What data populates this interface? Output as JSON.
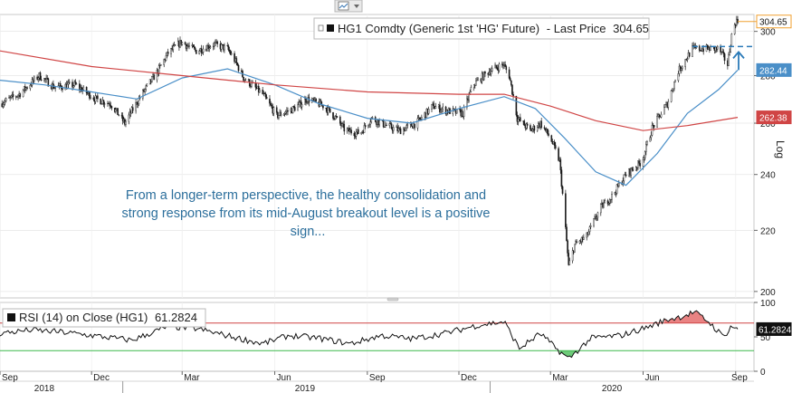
{
  "chart_data": [
    {
      "type": "candlestick",
      "legend": {
        "security": "HG1 Comdty (Generic 1st 'HG' Future)",
        "suffix": "- Last Price",
        "value": "304.65"
      },
      "scale": "log",
      "ylim": [
        198,
        308
      ],
      "yticks": [
        "300",
        "280",
        "260",
        "240",
        "220",
        "200"
      ],
      "ylabel": "Log",
      "date_range": [
        "2018-09-01",
        "2020-09-03"
      ],
      "close_path": [
        [
          "2018-09-01",
          268
        ],
        [
          "2018-09-20",
          272
        ],
        [
          "2018-10-10",
          280
        ],
        [
          "2018-10-25",
          275
        ],
        [
          "2018-11-15",
          276
        ],
        [
          "2018-12-05",
          270
        ],
        [
          "2018-12-20",
          268
        ],
        [
          "2019-01-03",
          260
        ],
        [
          "2019-01-20",
          272
        ],
        [
          "2019-02-05",
          282
        ],
        [
          "2019-02-15",
          290
        ],
        [
          "2019-02-28",
          295
        ],
        [
          "2019-03-15",
          291
        ],
        [
          "2019-04-01",
          294
        ],
        [
          "2019-04-15",
          292
        ],
        [
          "2019-04-22",
          287
        ],
        [
          "2019-05-01",
          279
        ],
        [
          "2019-05-20",
          272
        ],
        [
          "2019-06-03",
          263
        ],
        [
          "2019-06-20",
          266
        ],
        [
          "2019-07-03",
          270
        ],
        [
          "2019-07-20",
          267
        ],
        [
          "2019-08-01",
          262
        ],
        [
          "2019-08-10",
          257
        ],
        [
          "2019-08-25",
          256
        ],
        [
          "2019-09-05",
          262
        ],
        [
          "2019-09-20",
          259
        ],
        [
          "2019-10-03",
          257
        ],
        [
          "2019-10-20",
          260
        ],
        [
          "2019-11-05",
          267
        ],
        [
          "2019-11-20",
          265
        ],
        [
          "2019-12-05",
          264
        ],
        [
          "2019-12-15",
          276
        ],
        [
          "2019-12-31",
          282
        ],
        [
          "2020-01-14",
          285
        ],
        [
          "2020-01-20",
          280
        ],
        [
          "2020-01-28",
          262
        ],
        [
          "2020-02-10",
          257
        ],
        [
          "2020-02-20",
          260
        ],
        [
          "2020-03-01",
          254
        ],
        [
          "2020-03-10",
          245
        ],
        [
          "2020-03-19",
          208
        ],
        [
          "2020-03-25",
          215
        ],
        [
          "2020-04-06",
          218
        ],
        [
          "2020-04-20",
          228
        ],
        [
          "2020-05-01",
          232
        ],
        [
          "2020-05-15",
          240
        ],
        [
          "2020-05-31",
          245
        ],
        [
          "2020-06-10",
          258
        ],
        [
          "2020-06-25",
          268
        ],
        [
          "2020-07-06",
          282
        ],
        [
          "2020-07-20",
          292
        ],
        [
          "2020-08-05",
          292
        ],
        [
          "2020-08-15",
          292
        ],
        [
          "2020-08-24",
          285
        ],
        [
          "2020-08-28",
          298
        ],
        [
          "2020-09-01",
          304.65
        ]
      ],
      "series": [
        {
          "value": "282.44",
          "color": "#4a8fc8",
          "path": [
            [
              "2018-09-01",
              278
            ],
            [
              "2018-10-15",
              276
            ],
            [
              "2018-12-01",
              273
            ],
            [
              "2019-01-15",
              270
            ],
            [
              "2019-03-01",
              279
            ],
            [
              "2019-04-15",
              283
            ],
            [
              "2019-06-01",
              276
            ],
            [
              "2019-07-15",
              268
            ],
            [
              "2019-09-01",
              262
            ],
            [
              "2019-10-15",
              260
            ],
            [
              "2019-12-01",
              266
            ],
            [
              "2020-01-15",
              271
            ],
            [
              "2020-02-15",
              266
            ],
            [
              "2020-03-15",
              254
            ],
            [
              "2020-04-15",
              241
            ],
            [
              "2020-05-15",
              236
            ],
            [
              "2020-06-15",
              248
            ],
            [
              "2020-07-15",
              264
            ],
            [
              "2020-08-15",
              274
            ],
            [
              "2020-09-03",
              282.44
            ]
          ]
        },
        {
          "value": "262.38",
          "color": "#d04545",
          "path": [
            [
              "2018-09-01",
              291
            ],
            [
              "2018-12-01",
              284
            ],
            [
              "2019-03-01",
              280
            ],
            [
              "2019-06-01",
              276
            ],
            [
              "2019-09-01",
              273
            ],
            [
              "2019-12-01",
              272
            ],
            [
              "2020-01-15",
              272
            ],
            [
              "2020-03-01",
              267
            ],
            [
              "2020-04-15",
              261
            ],
            [
              "2020-06-01",
              257
            ],
            [
              "2020-07-15",
              259
            ],
            [
              "2020-09-03",
              262.38
            ]
          ]
        }
      ],
      "current_tag": {
        "value": "304.65",
        "color": "#ffffff",
        "border": "#f0a030"
      },
      "support_level": {
        "y": 293,
        "from": "2020-07-20",
        "to": "2020-09-03",
        "color": "#2a7ab8"
      },
      "annotation": [
        "From a longer-term perspective, the healthy consolidation and",
        "strong response from its mid-August breakout level is a positive",
        "sign..."
      ]
    },
    {
      "type": "line",
      "legend": {
        "label": "RSI (14)  on Close (HG1)",
        "value": "61.2824"
      },
      "ylim": [
        0,
        100
      ],
      "yticks": [
        "100",
        "50",
        "0"
      ],
      "overbought": 70,
      "oversold": 30,
      "colors": {
        "line": "#111111",
        "overbought": "#d04545",
        "oversold": "#3cb84c",
        "fill_over": "#e25a5a",
        "fill_under": "#3cb84c"
      },
      "path": [
        [
          "2018-09-01",
          55
        ],
        [
          "2018-10-01",
          60
        ],
        [
          "2018-11-01",
          57
        ],
        [
          "2018-12-01",
          52
        ],
        [
          "2019-01-10",
          45
        ],
        [
          "2019-02-15",
          65
        ],
        [
          "2019-03-15",
          62
        ],
        [
          "2019-04-20",
          50
        ],
        [
          "2019-05-20",
          40
        ],
        [
          "2019-06-15",
          52
        ],
        [
          "2019-07-15",
          48
        ],
        [
          "2019-08-15",
          40
        ],
        [
          "2019-09-15",
          52
        ],
        [
          "2019-10-15",
          47
        ],
        [
          "2019-11-20",
          56
        ],
        [
          "2019-12-20",
          67
        ],
        [
          "2020-01-15",
          72
        ],
        [
          "2020-01-30",
          33
        ],
        [
          "2020-02-20",
          55
        ],
        [
          "2020-03-05",
          35
        ],
        [
          "2020-03-19",
          18
        ],
        [
          "2020-04-10",
          48
        ],
        [
          "2020-05-10",
          52
        ],
        [
          "2020-06-05",
          64
        ],
        [
          "2020-06-25",
          75
        ],
        [
          "2020-07-10",
          80
        ],
        [
          "2020-07-22",
          86
        ],
        [
          "2020-08-05",
          72
        ],
        [
          "2020-08-20",
          50
        ],
        [
          "2020-08-28",
          66
        ],
        [
          "2020-09-03",
          61.28
        ]
      ],
      "last_value": "61.2824"
    }
  ],
  "x_axis": {
    "months": [
      {
        "label": "Sep",
        "date": "2018-09-01"
      },
      {
        "label": "Dec",
        "date": "2018-12-01"
      },
      {
        "label": "Mar",
        "date": "2019-03-01"
      },
      {
        "label": "Jun",
        "date": "2019-06-01"
      },
      {
        "label": "Sep",
        "date": "2019-09-01"
      },
      {
        "label": "Dec",
        "date": "2019-12-01"
      },
      {
        "label": "Mar",
        "date": "2020-03-01"
      },
      {
        "label": "Jun",
        "date": "2020-06-01"
      },
      {
        "label": "Sep",
        "date": "2020-09-01"
      }
    ],
    "years": [
      {
        "label": "2018",
        "center": "2018-10-15"
      },
      {
        "label": "2019",
        "center": "2019-07-01"
      },
      {
        "label": "2020",
        "center": "2020-05-01"
      }
    ],
    "year_breaks": [
      "2019-01-01",
      "2020-01-01"
    ]
  },
  "toolbar": {
    "icon": "chart-options-icon"
  }
}
